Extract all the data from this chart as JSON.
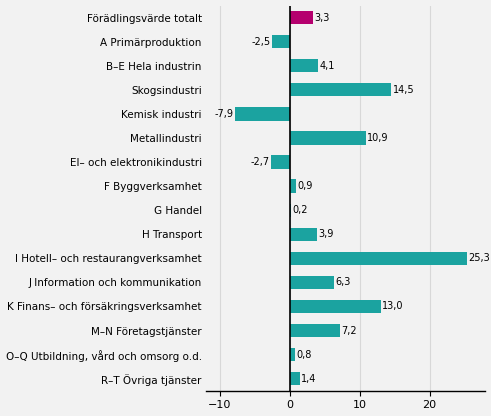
{
  "categories": [
    "Förädlingsvärde totalt",
    "A Primärproduktion",
    "B–E Hela industrin",
    "Skogsindustri",
    "Kemisk industri",
    "Metallindustri",
    "El– och elektronikindustri",
    "F Byggverksamhet",
    "G Handel",
    "H Transport",
    "I Hotell– och restaurangverksamhet",
    "J Information och kommunikation",
    "K Finans– och försäkringsverksamhet",
    "M–N Företagstjänster",
    "O–Q Utbildning, vård och omsorg o.d.",
    "R–T Övriga tjänster"
  ],
  "values": [
    3.3,
    -2.5,
    4.1,
    14.5,
    -7.9,
    10.9,
    -2.7,
    0.9,
    0.2,
    3.9,
    25.3,
    6.3,
    13.0,
    7.2,
    0.8,
    1.4
  ],
  "bar_colors": [
    "#b5006e",
    "#1ba3a0",
    "#1ba3a0",
    "#1ba3a0",
    "#1ba3a0",
    "#1ba3a0",
    "#1ba3a0",
    "#1ba3a0",
    "#1ba3a0",
    "#1ba3a0",
    "#1ba3a0",
    "#1ba3a0",
    "#1ba3a0",
    "#1ba3a0",
    "#1ba3a0",
    "#1ba3a0"
  ],
  "xlim": [
    -12,
    28
  ],
  "xticks": [
    -10,
    0,
    10,
    20
  ],
  "bar_height": 0.55,
  "value_fontsize": 7.0,
  "label_fontsize": 7.5,
  "tick_fontsize": 8,
  "background_color": "#f2f2f2",
  "grid_color": "#d8d8d8",
  "spine_color": "#000000"
}
